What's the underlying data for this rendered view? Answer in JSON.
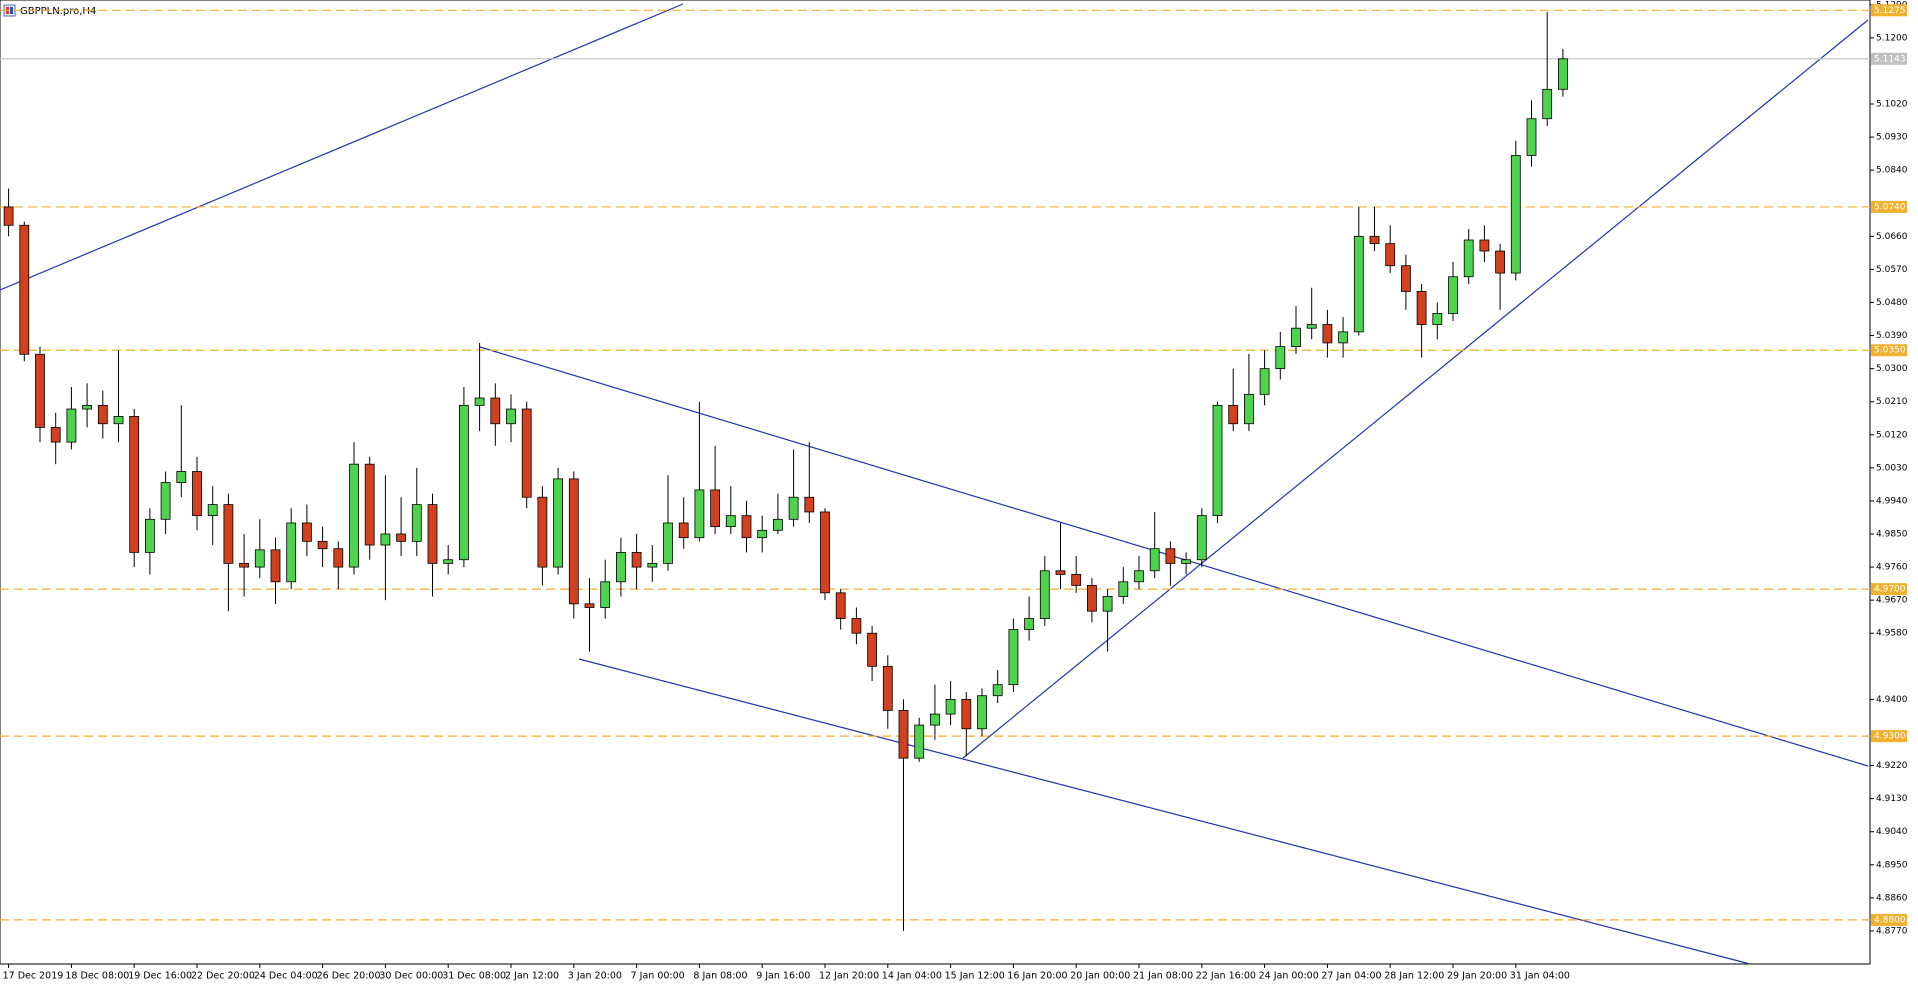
{
  "chart_data": {
    "type": "candlestick",
    "title": "GBPPLN.pro,H4",
    "categories": [
      "17 Dec 2019",
      null,
      null,
      null,
      "18 Dec 08:00",
      null,
      null,
      null,
      "19 Dec 16:00",
      null,
      null,
      null,
      "22 Dec 20:00",
      null,
      null,
      null,
      "24 Dec 04:00",
      null,
      null,
      null,
      "26 Dec 20:00",
      null,
      null,
      null,
      "30 Dec 00:00",
      null,
      null,
      null,
      "31 Dec 08:00",
      null,
      null,
      null,
      "2 Jan 12:00",
      null,
      null,
      null,
      "3 Jan 20:00",
      null,
      null,
      null,
      "7 Jan 00:00",
      null,
      null,
      null,
      "8 Jan 08:00",
      null,
      null,
      null,
      "9 Jan 16:00",
      null,
      null,
      null,
      "12 Jan 20:00",
      null,
      null,
      null,
      "14 Jan 04:00",
      null,
      null,
      null,
      "15 Jan 12:00",
      null,
      null,
      null,
      "16 Jan 20:00",
      null,
      null,
      null,
      "20 Jan 00:00",
      null,
      null,
      null,
      "21 Jan 08:00",
      null,
      null,
      null,
      "22 Jan 16:00",
      null,
      null,
      null,
      "24 Jan 00:00",
      null,
      null,
      null,
      "27 Jan 04:00",
      null,
      null,
      null,
      "28 Jan 12:00",
      null,
      null,
      null,
      "29 Jan 20:00",
      null,
      null,
      null,
      "31 Jan 04:00",
      null,
      null,
      null
    ],
    "open": [
      5.074,
      5.069,
      5.0339,
      5.014,
      5.01,
      5.019,
      5.02,
      5.015,
      5.017,
      4.98,
      4.989,
      4.999,
      5.002,
      4.99,
      4.993,
      4.977,
      4.976,
      4.9807,
      4.972,
      4.988,
      4.983,
      4.981,
      4.976,
      5.004,
      4.982,
      4.985,
      4.983,
      4.993,
      4.977,
      4.978,
      5.02,
      5.022,
      5.015,
      5.019,
      4.995,
      4.976,
      5.0,
      4.966,
      4.965,
      4.972,
      4.98,
      4.976,
      4.977,
      4.988,
      4.984,
      4.997,
      4.987,
      4.99,
      4.984,
      4.986,
      4.989,
      4.995,
      4.991,
      4.969,
      4.962,
      4.958,
      4.949,
      4.937,
      4.924,
      4.933,
      4.936,
      4.94,
      4.932,
      4.941,
      4.944,
      4.959,
      4.962,
      4.975,
      4.974,
      4.971,
      4.964,
      4.968,
      4.972,
      4.975,
      4.981,
      4.977,
      4.978,
      4.99,
      5.02,
      5.015,
      5.023,
      5.03,
      5.036,
      5.041,
      5.042,
      5.037,
      5.04,
      5.066,
      5.064,
      5.058,
      5.051,
      5.042,
      5.045,
      5.055,
      5.065,
      5.062,
      5.056,
      5.088,
      5.098,
      5.106
    ],
    "high": [
      5.079,
      5.07,
      5.036,
      5.018,
      5.025,
      5.026,
      5.024,
      5.035,
      5.019,
      4.992,
      5.002,
      5.02,
      5.006,
      4.998,
      4.996,
      4.985,
      4.989,
      4.984,
      4.992,
      4.993,
      4.987,
      4.983,
      5.01,
      5.006,
      5.001,
      4.995,
      5.003,
      4.996,
      4.982,
      5.025,
      5.037,
      5.026,
      5.023,
      5.021,
      4.998,
      5.003,
      5.002,
      4.973,
      4.978,
      4.984,
      4.985,
      4.982,
      5.001,
      4.995,
      5.021,
      5.009,
      4.998,
      4.994,
      4.99,
      4.996,
      5.008,
      5.01,
      4.992,
      4.97,
      4.965,
      4.96,
      4.952,
      4.94,
      4.935,
      4.944,
      4.945,
      4.942,
      4.943,
      4.948,
      4.962,
      4.968,
      4.979,
      4.988,
      4.979,
      4.973,
      4.97,
      4.976,
      4.979,
      4.991,
      4.983,
      4.98,
      4.992,
      5.021,
      5.03,
      5.034,
      5.035,
      5.04,
      5.047,
      5.052,
      5.046,
      5.044,
      5.074,
      5.074,
      5.069,
      5.061,
      5.053,
      5.048,
      5.059,
      5.068,
      5.069,
      5.064,
      5.092,
      5.103,
      5.127,
      5.117
    ],
    "low": [
      5.066,
      5.032,
      5.01,
      5.004,
      5.008,
      5.014,
      5.011,
      5.01,
      4.976,
      4.974,
      4.985,
      4.995,
      4.986,
      4.982,
      4.964,
      4.968,
      4.973,
      4.966,
      4.97,
      4.979,
      4.976,
      4.97,
      4.974,
      4.978,
      4.967,
      4.979,
      4.979,
      4.968,
      4.974,
      4.976,
      5.013,
      5.009,
      5.01,
      4.992,
      4.971,
      4.974,
      4.962,
      4.953,
      4.962,
      4.968,
      4.97,
      4.972,
      4.975,
      4.981,
      4.983,
      4.985,
      4.985,
      4.98,
      4.98,
      4.985,
      4.987,
      4.988,
      4.967,
      4.959,
      4.955,
      4.945,
      4.932,
      4.877,
      4.923,
      4.929,
      4.933,
      4.9245,
      4.93,
      4.939,
      4.942,
      4.956,
      4.96,
      4.97,
      4.969,
      4.961,
      4.953,
      4.966,
      4.97,
      4.973,
      4.971,
      4.974,
      4.976,
      4.988,
      5.013,
      5.013,
      5.02,
      5.027,
      5.034,
      5.038,
      5.033,
      5.033,
      5.039,
      5.062,
      5.056,
      5.046,
      5.033,
      5.038,
      5.043,
      5.053,
      5.059,
      5.046,
      5.054,
      5.085,
      5.096,
      5.104
    ],
    "close": [
      5.069,
      5.0339,
      5.014,
      5.01,
      5.019,
      5.02,
      5.015,
      5.017,
      4.98,
      4.989,
      4.999,
      5.002,
      4.99,
      4.993,
      4.977,
      4.976,
      4.9807,
      4.972,
      4.988,
      4.983,
      4.981,
      4.976,
      5.004,
      4.982,
      4.985,
      4.983,
      4.993,
      4.977,
      4.978,
      5.02,
      5.022,
      5.015,
      5.019,
      4.995,
      4.976,
      5.0,
      4.966,
      4.965,
      4.972,
      4.98,
      4.976,
      4.977,
      4.988,
      4.984,
      4.997,
      4.987,
      4.99,
      4.984,
      4.986,
      4.989,
      4.995,
      4.991,
      4.969,
      4.962,
      4.958,
      4.949,
      4.937,
      4.924,
      4.933,
      4.936,
      4.94,
      4.932,
      4.941,
      4.944,
      4.959,
      4.962,
      4.975,
      4.974,
      4.971,
      4.964,
      4.968,
      4.972,
      4.975,
      4.981,
      4.977,
      4.978,
      4.99,
      5.02,
      5.015,
      5.023,
      5.03,
      5.036,
      5.041,
      5.042,
      5.037,
      5.04,
      5.066,
      5.064,
      5.058,
      5.051,
      5.042,
      5.045,
      5.055,
      5.065,
      5.062,
      5.056,
      5.088,
      5.098,
      5.106,
      5.1143
    ],
    "up_color": "#4fd34f",
    "down_color": "#d2411f",
    "level_color": "#f0b030",
    "bid_color": "#c0c0c0",
    "ylim": [
      4.868,
      5.1303
    ],
    "yticks": [
      {
        "value": 5.129,
        "label": "5.1290"
      },
      {
        "value": 5.12,
        "label": "5.1200"
      },
      {
        "value": 5.102,
        "label": "5.1020"
      },
      {
        "value": 5.093,
        "label": "5.0930"
      },
      {
        "value": 5.084,
        "label": "5.0840"
      },
      {
        "value": 5.066,
        "label": "5.0660"
      },
      {
        "value": 5.057,
        "label": "5.0570"
      },
      {
        "value": 5.048,
        "label": "5.0480"
      },
      {
        "value": 5.039,
        "label": "5.0390"
      },
      {
        "value": 5.03,
        "label": "5.0300"
      },
      {
        "value": 5.021,
        "label": "5.0210"
      },
      {
        "value": 5.012,
        "label": "5.0120"
      },
      {
        "value": 5.003,
        "label": "5.0030"
      },
      {
        "value": 4.994,
        "label": "4.9940"
      },
      {
        "value": 4.985,
        "label": "4.9850"
      },
      {
        "value": 4.976,
        "label": "4.9760"
      },
      {
        "value": 4.967,
        "label": "4.9670"
      },
      {
        "value": 4.958,
        "label": "4.9580"
      },
      {
        "value": 4.94,
        "label": "4.9400"
      },
      {
        "value": 4.922,
        "label": "4.9220"
      },
      {
        "value": 4.913,
        "label": "4.9130"
      },
      {
        "value": 4.904,
        "label": "4.9040"
      },
      {
        "value": 4.895,
        "label": "4.8950"
      },
      {
        "value": 4.886,
        "label": "4.8860"
      },
      {
        "value": 4.877,
        "label": "4.8770"
      }
    ],
    "levels": [
      5.1275,
      {
        "value": 5.074,
        "label": "5.0740"
      },
      {
        "value": 5.035,
        "label": "5.0350"
      },
      {
        "value": 4.97,
        "label": "4.9700"
      },
      {
        "value": 4.93,
        "label": "4.9300"
      },
      {
        "value": 4.88,
        "label": "4.8800"
      }
    ],
    "bid": 5.1143
  }
}
